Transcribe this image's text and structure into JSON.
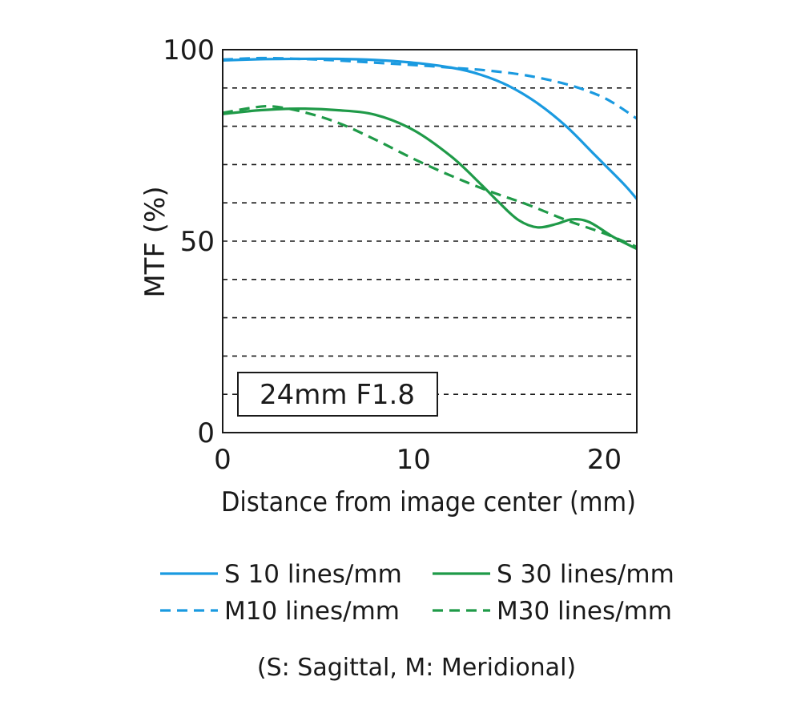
{
  "chart_data": {
    "type": "line",
    "badge": "24mm F1.8",
    "xlabel": "Distance from image center (mm)",
    "ylabel": "MTF (%)",
    "xlim": [
      0,
      21.7
    ],
    "ylim": [
      0,
      100
    ],
    "x_ticks": [
      0,
      10,
      20
    ],
    "y_ticks": [
      0,
      50,
      100
    ],
    "grid": "dashed horizontal every 10%",
    "series": [
      {
        "name": "S 10 lines/mm",
        "color": "#1a9ae0",
        "dash": "solid",
        "points": [
          [
            0,
            97.2
          ],
          [
            2,
            97.5
          ],
          [
            4,
            97.6
          ],
          [
            6,
            97.6
          ],
          [
            8,
            97.3
          ],
          [
            10,
            96.6
          ],
          [
            12,
            95.3
          ],
          [
            13.5,
            93.5
          ],
          [
            15,
            90.5
          ],
          [
            16.5,
            86
          ],
          [
            18,
            80
          ],
          [
            19.5,
            72.5
          ],
          [
            21,
            65
          ],
          [
            21.7,
            61
          ]
        ]
      },
      {
        "name": "M10 lines/mm",
        "color": "#1a9ae0",
        "dash": "dashed",
        "points": [
          [
            0,
            97.4
          ],
          [
            2,
            97.8
          ],
          [
            4,
            97.6
          ],
          [
            6,
            97.2
          ],
          [
            8,
            96.6
          ],
          [
            10,
            96
          ],
          [
            12,
            95.3
          ],
          [
            14,
            94.5
          ],
          [
            16,
            93.2
          ],
          [
            18,
            91
          ],
          [
            19.5,
            88.5
          ],
          [
            20.5,
            86
          ],
          [
            21.7,
            82
          ]
        ]
      },
      {
        "name": "S 30 lines/mm",
        "color": "#1f9a48",
        "dash": "solid",
        "points": [
          [
            0,
            83.2
          ],
          [
            2,
            84.2
          ],
          [
            4,
            84.6
          ],
          [
            6,
            84.2
          ],
          [
            8,
            83
          ],
          [
            10,
            79
          ],
          [
            12,
            72
          ],
          [
            13.5,
            65
          ],
          [
            14.5,
            60
          ],
          [
            15.5,
            55.5
          ],
          [
            16.5,
            53.6
          ],
          [
            17.5,
            54.5
          ],
          [
            18.3,
            55.7
          ],
          [
            19.2,
            55
          ],
          [
            20.5,
            51
          ],
          [
            21.7,
            48
          ]
        ]
      },
      {
        "name": "M30 lines/mm",
        "color": "#1f9a48",
        "dash": "dashed",
        "points": [
          [
            0,
            83.5
          ],
          [
            1.5,
            84.8
          ],
          [
            2.5,
            85.2
          ],
          [
            4,
            84
          ],
          [
            6,
            81
          ],
          [
            8,
            76.5
          ],
          [
            10,
            71.5
          ],
          [
            12,
            67
          ],
          [
            14,
            63
          ],
          [
            16,
            59.5
          ],
          [
            18,
            55.5
          ],
          [
            20,
            52
          ],
          [
            21.7,
            48.5
          ]
        ]
      }
    ],
    "legend": {
      "placement": "bottom",
      "order": [
        "S 10 lines/mm",
        "S 30 lines/mm",
        "M10 lines/mm",
        "M30 lines/mm"
      ]
    },
    "note": "(S: Sagittal, M: Meridional)"
  }
}
